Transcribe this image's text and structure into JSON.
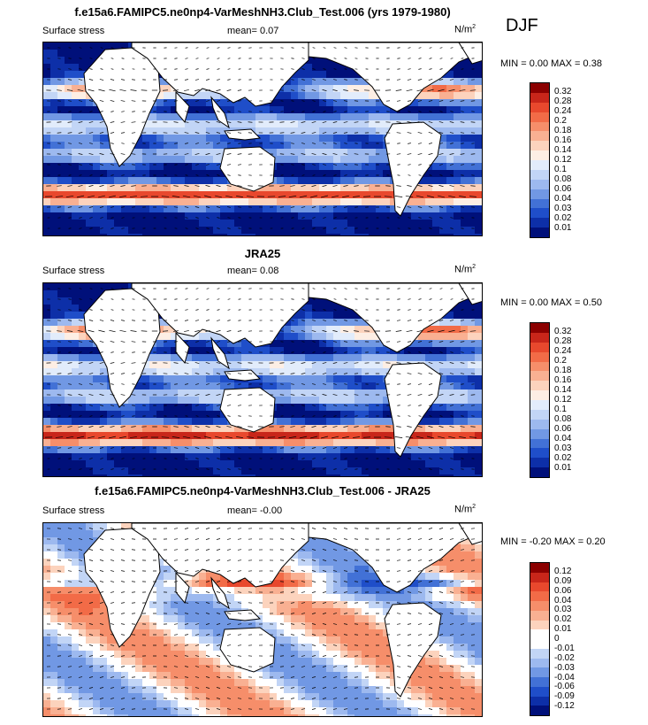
{
  "season": "DJF",
  "panels": [
    {
      "title": "f.e15a6.FAMIPC5.ne0np4-VarMeshNH3.Club_Test.006 (yrs 1979-1980)",
      "variable": "Surface stress",
      "mean_label": "mean=  0.07",
      "units": "N/m",
      "units_exp": "2",
      "minmax": "MIN =  0.00 MAX =  0.38",
      "levels": [
        "0.32",
        "0.28",
        "0.24",
        "0.2",
        "0.18",
        "0.16",
        "0.14",
        "0.12",
        "0.1",
        "0.08",
        "0.06",
        "0.04",
        "0.03",
        "0.02",
        "0.01"
      ],
      "colors": [
        "#8b0000",
        "#c8261a",
        "#e8482d",
        "#f26b47",
        "#f68e6a",
        "#f9b092",
        "#fcd3bd",
        "#fdeee4",
        "#e2ecfb",
        "#c2d5f6",
        "#9db9ef",
        "#7198e4",
        "#4271d6",
        "#1f4ec9",
        "#0d2fa8",
        "#00107a"
      ],
      "field": "model"
    },
    {
      "title": "JRA25",
      "variable": "Surface stress",
      "mean_label": "mean=  0.08",
      "units": "N/m",
      "units_exp": "2",
      "minmax": "MIN =  0.00 MAX =  0.50",
      "levels": [
        "0.32",
        "0.28",
        "0.24",
        "0.2",
        "0.18",
        "0.16",
        "0.14",
        "0.12",
        "0.1",
        "0.08",
        "0.06",
        "0.04",
        "0.03",
        "0.02",
        "0.01"
      ],
      "colors": [
        "#8b0000",
        "#c8261a",
        "#e8482d",
        "#f26b47",
        "#f68e6a",
        "#f9b092",
        "#fcd3bd",
        "#fdeee4",
        "#e2ecfb",
        "#c2d5f6",
        "#9db9ef",
        "#7198e4",
        "#4271d6",
        "#1f4ec9",
        "#0d2fa8",
        "#00107a"
      ],
      "field": "obs"
    },
    {
      "title": "f.e15a6.FAMIPC5.ne0np4-VarMeshNH3.Club_Test.006 - JRA25",
      "variable": "Surface stress",
      "mean_label": "mean=  -0.00",
      "units": "N/m",
      "units_exp": "2",
      "minmax": "MIN = -0.20 MAX =  0.20",
      "levels": [
        "0.12",
        "0.09",
        "0.06",
        "0.04",
        "0.03",
        "0.02",
        "0.01",
        "0",
        "-0.01",
        "-0.02",
        "-0.03",
        "-0.04",
        "-0.06",
        "-0.09",
        "-0.12"
      ],
      "colors": [
        "#8b0000",
        "#c8261a",
        "#e8482d",
        "#f26b47",
        "#f68e6a",
        "#f9b092",
        "#fcd3bd",
        "#ffffff",
        "#ffffff",
        "#c2d5f6",
        "#9db9ef",
        "#7198e4",
        "#4271d6",
        "#1f4ec9",
        "#0d2fa8",
        "#00107a"
      ],
      "field": "diff"
    }
  ],
  "chart_data": [
    {
      "type": "heatmap",
      "title": "f.e15a6.FAMIPC5.ne0np4-VarMeshNH3.Club_Test.006 (yrs 1979-1980)",
      "variable": "Surface stress",
      "units": "N/m2",
      "mean": 0.07,
      "min": 0.0,
      "max": 0.38,
      "season": "DJF",
      "levels": [
        0.01,
        0.02,
        0.03,
        0.04,
        0.06,
        0.08,
        0.1,
        0.12,
        0.14,
        0.16,
        0.18,
        0.2,
        0.24,
        0.28,
        0.32
      ]
    },
    {
      "type": "heatmap",
      "title": "JRA25",
      "variable": "Surface stress",
      "units": "N/m2",
      "mean": 0.08,
      "min": 0.0,
      "max": 0.5,
      "levels": [
        0.01,
        0.02,
        0.03,
        0.04,
        0.06,
        0.08,
        0.1,
        0.12,
        0.14,
        0.16,
        0.18,
        0.2,
        0.24,
        0.28,
        0.32
      ]
    },
    {
      "type": "heatmap",
      "title": "f.e15a6.FAMIPC5.ne0np4-VarMeshNH3.Club_Test.006 - JRA25",
      "variable": "Surface stress",
      "units": "N/m2",
      "mean": -0.0,
      "min": -0.2,
      "max": 0.2,
      "levels": [
        -0.12,
        -0.09,
        -0.06,
        -0.04,
        -0.03,
        -0.02,
        -0.01,
        0,
        0.01,
        0.02,
        0.03,
        0.04,
        0.06,
        0.09,
        0.12
      ]
    }
  ]
}
